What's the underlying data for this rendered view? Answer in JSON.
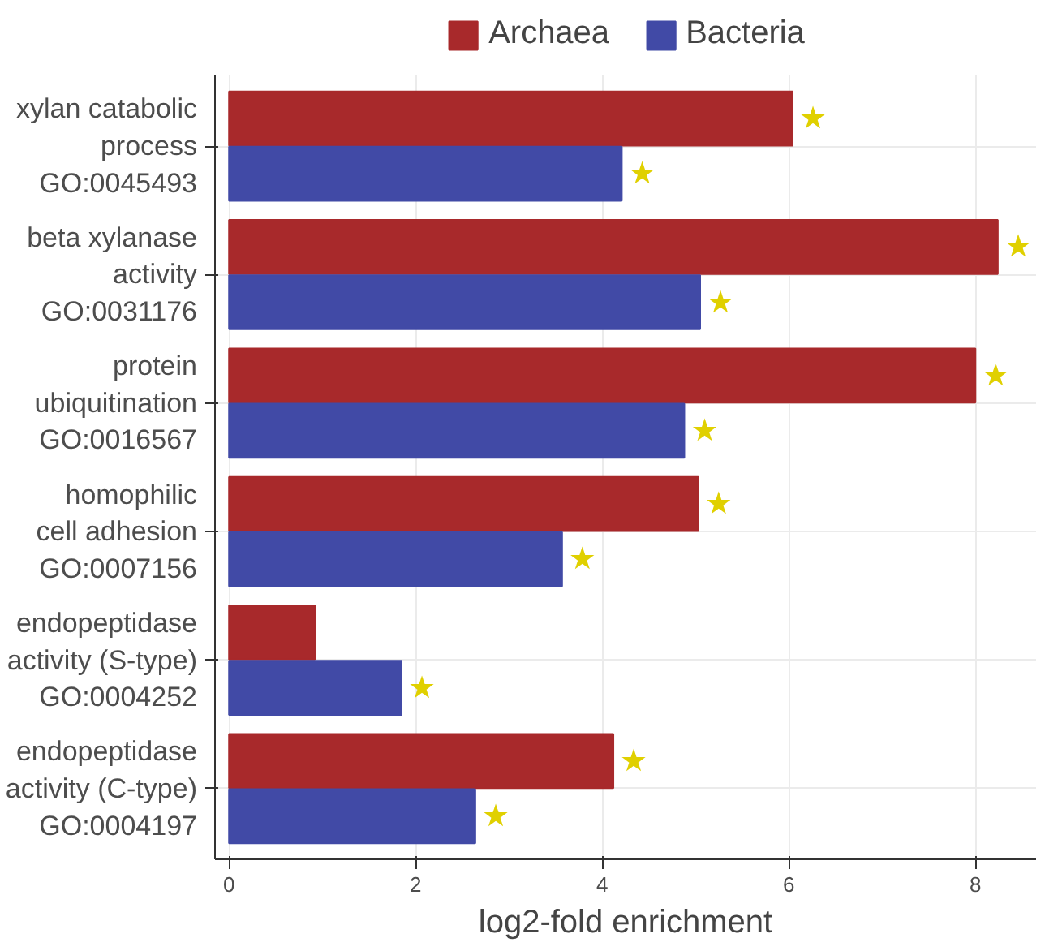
{
  "chart_data": {
    "type": "bar",
    "orientation": "horizontal",
    "xlabel": "log2-fold enrichment",
    "categories": [
      "xylan catabolic\nprocess\nGO:0045493",
      "beta xylanase\nactivity\nGO:0031176",
      "protein\nubiquitination\nGO:0016567",
      "homophilic\ncell adhesion\nGO:0007156",
      "endopeptidase\nactivity (S-type)\nGO:0004252",
      "endopeptidase\nactivity (C-type)\nGO:0004197"
    ],
    "series": [
      {
        "name": "Archaea",
        "color": "#a8292b",
        "values": [
          6.04,
          8.24,
          8.0,
          5.03,
          0.92,
          4.12
        ],
        "value_labels": [
          "★",
          "★",
          "★",
          "★",
          null,
          "★"
        ]
      },
      {
        "name": "Bacteria",
        "color": "#414aa6",
        "values": [
          4.21,
          5.05,
          4.88,
          3.57,
          1.85,
          2.64
        ],
        "value_labels": [
          "★",
          "★",
          "★",
          "★",
          "★",
          "★"
        ]
      }
    ],
    "xlim": [
      -0.15,
      8.65
    ],
    "xticks": [
      0,
      2,
      4,
      6,
      8
    ],
    "grid": true,
    "legend": "top"
  }
}
